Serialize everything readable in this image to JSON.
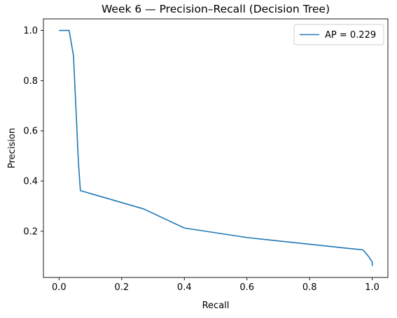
{
  "chart_data": {
    "type": "line",
    "title": "Week 6 — Precision–Recall (Decision Tree)",
    "xlabel": "Recall",
    "ylabel": "Precision",
    "xlim": [
      -0.05,
      1.05
    ],
    "ylim": [
      0.016,
      1.046
    ],
    "xticks": [
      0.0,
      0.2,
      0.4,
      0.6,
      0.8,
      1.0
    ],
    "xtick_labels": [
      "0.0",
      "0.2",
      "0.4",
      "0.6",
      "0.8",
      "1.0"
    ],
    "yticks": [
      0.2,
      0.4,
      0.6,
      0.8,
      1.0
    ],
    "ytick_labels": [
      "0.2",
      "0.4",
      "0.6",
      "0.8",
      "1.0"
    ],
    "grid": false,
    "legend_position": "top-right",
    "series": [
      {
        "name": "AP = 0.229",
        "color": "#1f77b4",
        "x": [
          0.0,
          0.032,
          0.046,
          0.062,
          0.068,
          0.27,
          0.4,
          0.6,
          0.93,
          0.97,
          0.985,
          1.0,
          1.0
        ],
        "y": [
          1.0,
          1.0,
          0.9,
          0.47,
          0.362,
          0.289,
          0.213,
          0.175,
          0.131,
          0.126,
          0.105,
          0.078,
          0.062
        ]
      }
    ]
  }
}
